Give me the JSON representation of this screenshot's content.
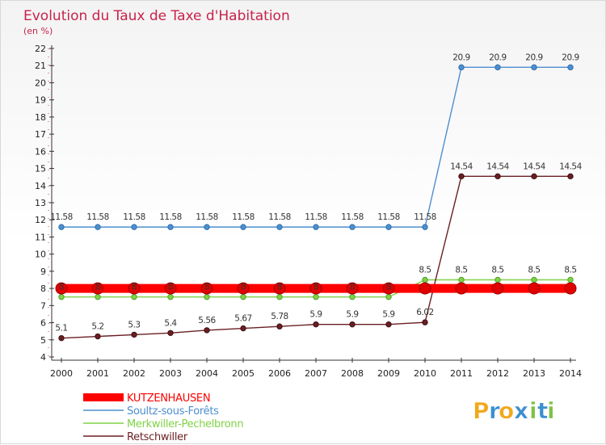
{
  "chart_data": {
    "type": "line",
    "title": "Evolution du Taux de Taxe d'Habitation",
    "subtitle": "(en %)",
    "xlabel": "",
    "ylabel": "",
    "categories": [
      "2000",
      "2001",
      "2002",
      "2003",
      "2004",
      "2005",
      "2006",
      "2007",
      "2008",
      "2009",
      "2010",
      "2011",
      "2012",
      "2013",
      "2014"
    ],
    "ylim": [
      4,
      22
    ],
    "yticks": [
      4,
      5,
      6,
      7,
      8,
      9,
      10,
      11,
      12,
      13,
      14,
      15,
      16,
      17,
      18,
      19,
      20,
      21,
      22
    ],
    "grid": false,
    "legend_position": "bottom-left",
    "series": [
      {
        "name": "KUTZENHAUSEN",
        "color": "#ff0000",
        "values": [
          8,
          8,
          8,
          8,
          8,
          8,
          8,
          8,
          8,
          8,
          8,
          8,
          8,
          8,
          8
        ],
        "labels": [
          "8",
          "8",
          "8",
          "8",
          "8",
          "8",
          "8",
          "8",
          "8",
          "8",
          "8",
          "8",
          "8",
          "8",
          "8"
        ],
        "show_labels": false
      },
      {
        "name": "Soultz-sous-Forêts",
        "color": "#4d8fcf",
        "values": [
          11.58,
          11.58,
          11.58,
          11.58,
          11.58,
          11.58,
          11.58,
          11.58,
          11.58,
          11.58,
          11.58,
          20.9,
          20.9,
          20.9,
          20.9
        ],
        "labels": [
          "11.58",
          "11.58",
          "11.58",
          "11.58",
          "11.58",
          "11.58",
          "11.58",
          "11.58",
          "11.58",
          "11.58",
          "11.58",
          "20.9",
          "20.9",
          "20.9",
          "20.9"
        ],
        "show_labels": true
      },
      {
        "name": "Merkwiller-Pechelbronn",
        "color": "#7fd245",
        "values": [
          7.5,
          7.5,
          7.5,
          7.5,
          7.5,
          7.5,
          7.5,
          7.5,
          7.5,
          7.5,
          8.5,
          8.5,
          8.5,
          8.5,
          8.5
        ],
        "labels": [
          "8",
          "8",
          "8",
          "8",
          "8",
          "8",
          "8",
          "8",
          "8",
          "8",
          "8.5",
          "8.5",
          "8.5",
          "8.5",
          "8.5"
        ],
        "show_labels": true
      },
      {
        "name": "Retschwiller",
        "color": "#6b1f22",
        "values": [
          5.1,
          5.2,
          5.3,
          5.4,
          5.56,
          5.67,
          5.78,
          5.9,
          5.9,
          5.9,
          6.02,
          14.54,
          14.54,
          14.54,
          14.54
        ],
        "labels": [
          "5.1",
          "5.2",
          "5.3",
          "5.4",
          "5.56",
          "5.67",
          "5.78",
          "5.9",
          "5.9",
          "5.9",
          "6.02",
          "14.54",
          "14.54",
          "14.54",
          "14.54"
        ],
        "show_labels": true
      }
    ]
  },
  "logo": {
    "letters": [
      "P",
      "r",
      "o",
      "x",
      "i",
      "t",
      "i"
    ],
    "colors": [
      "#f2a81d",
      "#3a8fd0",
      "#f2a81d",
      "#3a8fd0",
      "#7cc242",
      "#3a8fd0",
      "#7cc242"
    ]
  }
}
